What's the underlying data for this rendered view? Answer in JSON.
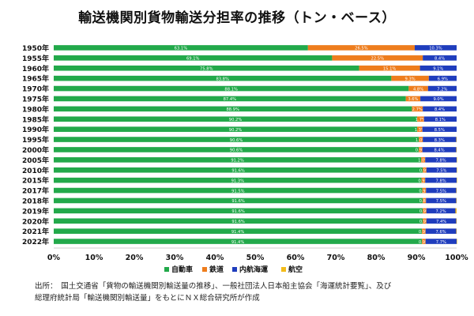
{
  "chart_data": {
    "type": "bar",
    "stacked": true,
    "orientation": "horizontal",
    "title": "輸送機関別貨物輸送分担率の推移（トン・ベース）",
    "xlabel": "",
    "ylabel": "",
    "xlim": [
      0,
      100
    ],
    "x_ticks": [
      "0%",
      "10%",
      "20%",
      "30%",
      "40%",
      "50%",
      "60%",
      "70%",
      "80%",
      "90%",
      "100%"
    ],
    "legend_position": "bottom",
    "categories": [
      "1950年",
      "1955年",
      "1960年",
      "1965年",
      "1970年",
      "1975年",
      "1980年",
      "1985年",
      "1990年",
      "1995年",
      "2000年",
      "2005年",
      "2010年",
      "2015年",
      "2017年",
      "2018年",
      "2019年",
      "2020年",
      "2021年",
      "2022年"
    ],
    "series": [
      {
        "name": "自動車",
        "color": "#22a94a",
        "values": [
          63.1,
          69.1,
          75.8,
          83.8,
          88.1,
          87.4,
          88.9,
          90.2,
          90.2,
          90.6,
          90.6,
          91.2,
          91.6,
          91.3,
          91.5,
          91.6,
          91.6,
          91.6,
          91.4,
          91.4
        ],
        "labels": [
          "63.1%",
          "69.1%",
          "75.8%",
          "83.8%",
          "88.1%",
          "87.4%",
          "88.9%",
          "90.2%",
          "90.2%",
          "90.6%",
          "90.6%",
          "91.2%",
          "91.6%",
          "91.3%",
          "91.5%",
          "91.6%",
          "91.6%",
          "91.6%",
          "91.4%",
          "91.4%"
        ]
      },
      {
        "name": "鉄道",
        "color": "#ee7d1d",
        "values": [
          26.5,
          22.5,
          15.1,
          9.3,
          4.8,
          3.6,
          2.7,
          1.7,
          1.3,
          1.0,
          0.9,
          1.0,
          0.9,
          0.9,
          0.9,
          0.8,
          0.9,
          0.9,
          0.9,
          0.9
        ],
        "labels": [
          "26.5%",
          "22.5%",
          "15.1%",
          "9.3%",
          "4.8%",
          "3.6%",
          "2.7%",
          "1.7%",
          "1.3%",
          "1.0%",
          "0.9%",
          "1.0%",
          "0.9%",
          "0.9%",
          "0.9%",
          "0.8%",
          "0.9%",
          "0.9%",
          "0.9%",
          "0.9%"
        ]
      },
      {
        "name": "内航海運",
        "color": "#1f3dbd",
        "values": [
          10.3,
          8.4,
          9.1,
          6.9,
          7.2,
          9.0,
          8.4,
          8.1,
          8.5,
          8.3,
          8.4,
          7.8,
          7.5,
          7.8,
          7.5,
          7.5,
          7.2,
          7.4,
          7.6,
          7.7
        ],
        "labels": [
          "10.3%",
          "8.4%",
          "9.1%",
          "6.9%",
          "7.2%",
          "9.0%",
          "8.4%",
          "8.1%",
          "8.5%",
          "8.3%",
          "8.4%",
          "7.8%",
          "7.5%",
          "7.8%",
          "7.5%",
          "7.5%",
          "7.2%",
          "7.4%",
          "7.6%",
          "7.7%"
        ]
      },
      {
        "name": "航空",
        "color": "#f3bc1a",
        "values": [
          0,
          0,
          0,
          0,
          0,
          0,
          0,
          0,
          0,
          0.1,
          0.1,
          0.1,
          0.1,
          0.1,
          0.1,
          0.1,
          0.1,
          0.1,
          0.1,
          0.1
        ],
        "labels": [
          "",
          "",
          "",
          "",
          "",
          "",
          "",
          "",
          "",
          "",
          "",
          "",
          "",
          "",
          "",
          "",
          "",
          "",
          "",
          ""
        ]
      }
    ]
  },
  "source": {
    "line1": "出所：　国土交通省「貨物の輸送機関別輸送量の推移」、一般社団法人日本船主協会「海運統計要覧」、及び",
    "line2": "総理府統計局「輸送機関別輸送量」をもとにＮＸ総合研究所が作成"
  }
}
